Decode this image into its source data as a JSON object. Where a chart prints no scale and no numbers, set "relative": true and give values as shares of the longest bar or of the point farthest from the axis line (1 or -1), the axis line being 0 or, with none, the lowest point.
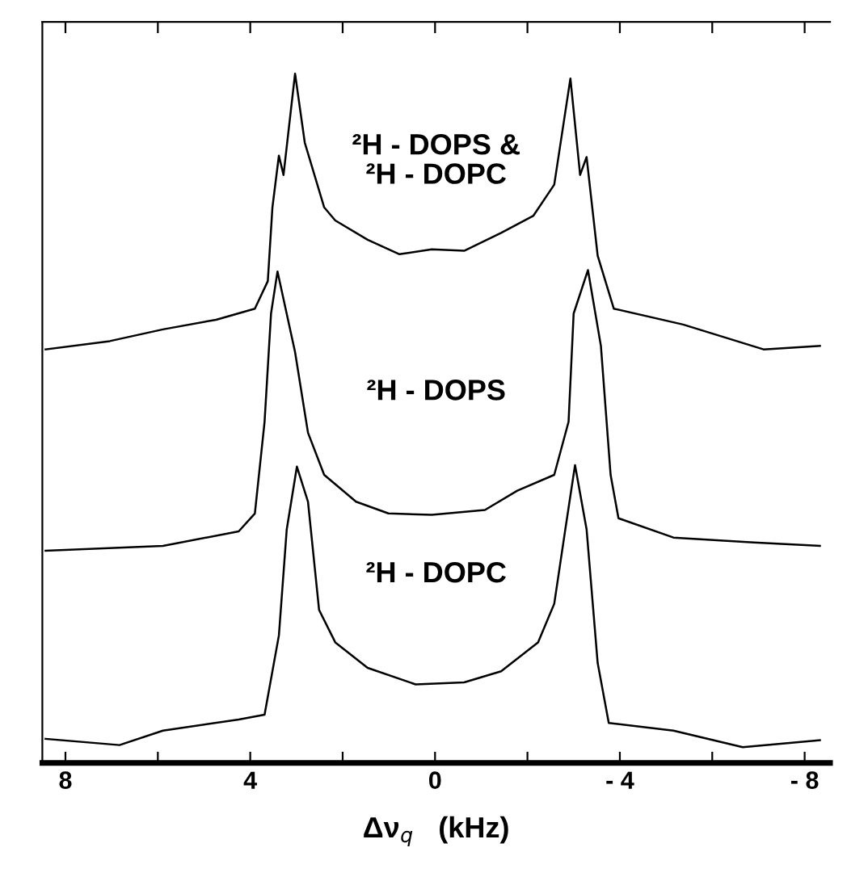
{
  "chart_data": {
    "type": "line",
    "relative": true,
    "xlabel": "Δν$_{q}$   (kHz)",
    "xlim": [
      8.5,
      -8.55
    ],
    "xticks": [
      8,
      {
        "value": 6,
        "label": null
      },
      4,
      {
        "value": 2,
        "label": null
      },
      0,
      {
        "value": -2,
        "label": null
      },
      {
        "value": -4,
        "label": "- 4"
      },
      {
        "value": -6,
        "label": null
      },
      {
        "value": -8,
        "label": "- 8"
      }
    ],
    "grid": false,
    "legend": false,
    "marker": "none",
    "line_style": "solid",
    "series": [
      {
        "name": "²H - DOPS &\n²H - DOPC",
        "color": "#000000",
        "x": [
          8.43,
          7.04,
          5.89,
          4.74,
          3.9,
          3.62,
          3.52,
          3.38,
          3.28,
          3.03,
          2.82,
          2.4,
          2.16,
          1.46,
          0.77,
          0.07,
          -0.63,
          -1.43,
          -2.13,
          -2.58,
          -2.93,
          -3.14,
          -3.28,
          -3.52,
          -3.87,
          -5.37,
          -7.11,
          -8.33
        ],
        "values": [
          0.6,
          0.612,
          0.629,
          0.643,
          0.659,
          0.699,
          0.806,
          0.881,
          0.853,
          1.0,
          0.9,
          0.806,
          0.787,
          0.759,
          0.738,
          0.745,
          0.743,
          0.769,
          0.794,
          0.839,
          0.993,
          0.853,
          0.879,
          0.736,
          0.659,
          0.636,
          0.6,
          0.605
        ]
      },
      {
        "name": "²H - DOPS",
        "color": "#000000",
        "x": [
          8.43,
          5.89,
          4.25,
          3.9,
          3.69,
          3.55,
          3.41,
          3.03,
          2.75,
          2.4,
          1.71,
          1.01,
          0.07,
          -1.08,
          -1.78,
          -2.58,
          -2.89,
          -3.0,
          -3.31,
          -3.59,
          -3.8,
          -3.97,
          -5.16,
          -6.9,
          -8.33
        ],
        "values": [
          0.308,
          0.315,
          0.336,
          0.362,
          0.495,
          0.652,
          0.713,
          0.596,
          0.479,
          0.418,
          0.379,
          0.362,
          0.36,
          0.367,
          0.395,
          0.418,
          0.495,
          0.652,
          0.715,
          0.605,
          0.418,
          0.355,
          0.327,
          0.32,
          0.315
        ]
      },
      {
        "name": "²H - DOPC",
        "color": "#000000",
        "x": [
          8.43,
          6.83,
          5.89,
          4.25,
          3.69,
          3.38,
          3.21,
          2.99,
          2.75,
          2.51,
          2.16,
          1.46,
          0.42,
          -0.63,
          -1.43,
          -2.23,
          -2.58,
          -2.82,
          -3.03,
          -3.28,
          -3.52,
          -3.76,
          -5.16,
          -6.66,
          -8.33
        ],
        "values": [
          0.035,
          0.026,
          0.047,
          0.063,
          0.07,
          0.185,
          0.339,
          0.43,
          0.379,
          0.222,
          0.175,
          0.138,
          0.114,
          0.117,
          0.133,
          0.175,
          0.231,
          0.339,
          0.432,
          0.339,
          0.145,
          0.058,
          0.047,
          0.023,
          0.033
        ]
      }
    ]
  }
}
